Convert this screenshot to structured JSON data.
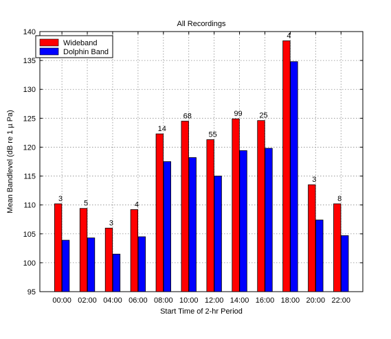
{
  "chart_data": {
    "type": "bar",
    "title": "All Recordings",
    "xlabel": "Start Time of 2-hr Period",
    "ylabel": "Mean Bandlevel (dB re 1 µ Pa)",
    "categories": [
      "00:00",
      "02:00",
      "04:00",
      "06:00",
      "08:00",
      "10:00",
      "12:00",
      "14:00",
      "16:00",
      "18:00",
      "20:00",
      "22:00"
    ],
    "series": [
      {
        "name": "Wideband",
        "color": "#ff0000",
        "values": [
          110.2,
          109.4,
          106.0,
          109.2,
          122.3,
          124.5,
          121.3,
          124.9,
          124.6,
          138.4,
          113.5,
          110.2
        ]
      },
      {
        "name": "Dolphin Band",
        "color": "#0000ff",
        "values": [
          103.9,
          104.3,
          101.5,
          104.5,
          117.5,
          118.2,
          115.0,
          119.4,
          119.8,
          134.8,
          107.4,
          104.7
        ]
      }
    ],
    "counts": [
      "3",
      "5",
      "3",
      "4",
      "14",
      "68",
      "55",
      "99",
      "25",
      "4",
      "3",
      "8"
    ],
    "ylim": [
      95,
      140
    ],
    "yticks": [
      95,
      100,
      105,
      110,
      115,
      120,
      125,
      130,
      135,
      140
    ],
    "grid": true,
    "legend_position": "top-left"
  }
}
